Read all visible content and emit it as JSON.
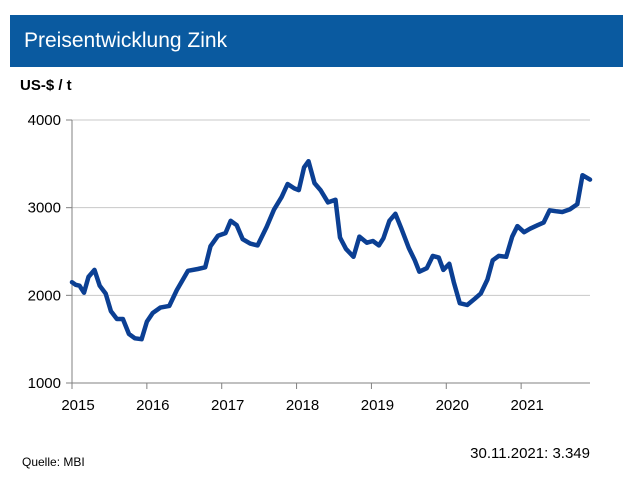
{
  "title": "Preisentwicklung Zink",
  "source": "Quelle: MBI",
  "footnote": "30.11.2021: 3.349",
  "chart_data": {
    "type": "line",
    "title": "Preisentwicklung Zink",
    "ylabel": "US-$ / t",
    "xlabel": "",
    "ylim": [
      1000,
      4000
    ],
    "xlim": [
      2015.0,
      2021.92
    ],
    "yticks": [
      "1000",
      "2000",
      "3000",
      "4000"
    ],
    "xticks": [
      "2015",
      "2016",
      "2017",
      "2018",
      "2019",
      "2020",
      "2021"
    ],
    "grid": "horizontal",
    "legend": "none",
    "series": [
      {
        "color": "#0b3f93",
        "points": [
          [
            2015.0,
            2150
          ],
          [
            2015.05,
            2120
          ],
          [
            2015.1,
            2110
          ],
          [
            2015.16,
            2030
          ],
          [
            2015.22,
            2210
          ],
          [
            2015.3,
            2290
          ],
          [
            2015.37,
            2110
          ],
          [
            2015.45,
            2020
          ],
          [
            2015.52,
            1820
          ],
          [
            2015.6,
            1730
          ],
          [
            2015.68,
            1730
          ],
          [
            2015.76,
            1560
          ],
          [
            2015.84,
            1510
          ],
          [
            2015.93,
            1500
          ],
          [
            2016.0,
            1700
          ],
          [
            2016.08,
            1800
          ],
          [
            2016.18,
            1860
          ],
          [
            2016.3,
            1880
          ],
          [
            2016.4,
            2060
          ],
          [
            2016.55,
            2280
          ],
          [
            2016.68,
            2300
          ],
          [
            2016.78,
            2320
          ],
          [
            2016.85,
            2560
          ],
          [
            2016.95,
            2680
          ],
          [
            2017.05,
            2710
          ],
          [
            2017.12,
            2850
          ],
          [
            2017.2,
            2800
          ],
          [
            2017.28,
            2640
          ],
          [
            2017.38,
            2590
          ],
          [
            2017.48,
            2570
          ],
          [
            2017.6,
            2780
          ],
          [
            2017.7,
            2980
          ],
          [
            2017.8,
            3120
          ],
          [
            2017.88,
            3270
          ],
          [
            2017.97,
            3220
          ],
          [
            2018.03,
            3200
          ],
          [
            2018.1,
            3460
          ],
          [
            2018.16,
            3530
          ],
          [
            2018.24,
            3280
          ],
          [
            2018.32,
            3200
          ],
          [
            2018.42,
            3060
          ],
          [
            2018.52,
            3090
          ],
          [
            2018.58,
            2660
          ],
          [
            2018.66,
            2530
          ],
          [
            2018.76,
            2440
          ],
          [
            2018.84,
            2670
          ],
          [
            2018.94,
            2600
          ],
          [
            2019.02,
            2620
          ],
          [
            2019.1,
            2570
          ],
          [
            2019.16,
            2650
          ],
          [
            2019.24,
            2850
          ],
          [
            2019.32,
            2930
          ],
          [
            2019.4,
            2760
          ],
          [
            2019.5,
            2540
          ],
          [
            2019.58,
            2400
          ],
          [
            2019.64,
            2270
          ],
          [
            2019.74,
            2310
          ],
          [
            2019.82,
            2450
          ],
          [
            2019.9,
            2430
          ],
          [
            2019.96,
            2290
          ],
          [
            2020.04,
            2360
          ],
          [
            2020.1,
            2150
          ],
          [
            2020.18,
            1910
          ],
          [
            2020.28,
            1890
          ],
          [
            2020.38,
            1960
          ],
          [
            2020.46,
            2020
          ],
          [
            2020.55,
            2180
          ],
          [
            2020.62,
            2400
          ],
          [
            2020.7,
            2450
          ],
          [
            2020.8,
            2440
          ],
          [
            2020.88,
            2670
          ],
          [
            2020.95,
            2790
          ],
          [
            2021.04,
            2720
          ],
          [
            2021.12,
            2760
          ],
          [
            2021.22,
            2800
          ],
          [
            2021.3,
            2830
          ],
          [
            2021.38,
            2970
          ],
          [
            2021.46,
            2960
          ],
          [
            2021.55,
            2950
          ],
          [
            2021.65,
            2980
          ],
          [
            2021.75,
            3040
          ],
          [
            2021.82,
            3370
          ],
          [
            2021.92,
            3320
          ]
        ]
      }
    ]
  }
}
